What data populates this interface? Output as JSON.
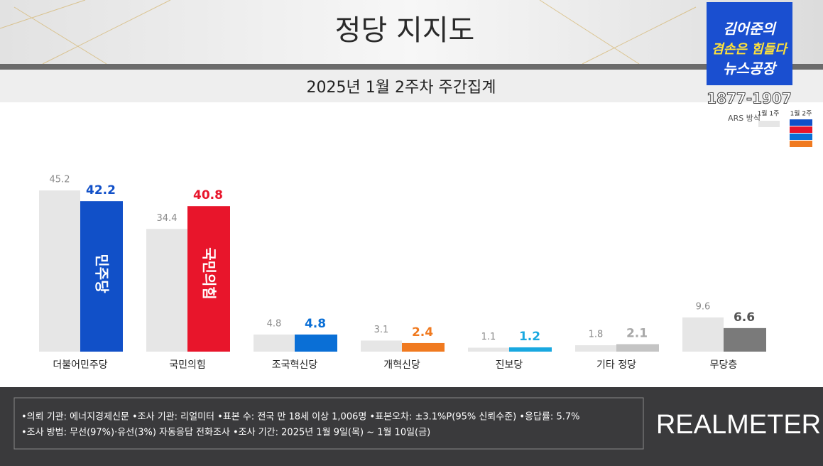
{
  "chart_data": {
    "type": "bar",
    "title": "정당 지지도",
    "subtitle": "2025년 1월 2주차 주간집계",
    "categories": [
      "더불어민주당",
      "국민의힘",
      "조국혁신당",
      "개혁신당",
      "진보당",
      "기타 정당",
      "무당층"
    ],
    "series": [
      {
        "name": "1월 1주",
        "color": "#e6e6e6",
        "label_color": "#8a8a8a",
        "values": [
          45.2,
          34.4,
          4.8,
          3.1,
          1.1,
          1.8,
          9.6
        ]
      },
      {
        "name": "1월 2주",
        "colors": [
          "#1150c8",
          "#e8152b",
          "#0a6fd6",
          "#f07a20",
          "#19a8e0",
          "#c4c4c4",
          "#7a7a7a"
        ],
        "label_colors": [
          "#1150c8",
          "#e8152b",
          "#0a6fd6",
          "#f07a20",
          "#19a8e0",
          "#a8a8a8",
          "#555555"
        ],
        "values": [
          42.2,
          40.8,
          4.8,
          2.4,
          1.2,
          2.1,
          6.6
        ]
      }
    ],
    "bar_logos": [
      "민주당",
      "국민의힘",
      null,
      null,
      null,
      null,
      null
    ]
  },
  "header": {
    "show_name": "김어준의",
    "show_slogan": "겸손은 힘들다",
    "show_title": "뉴스공장",
    "phone": "1877-1907",
    "method": "ARS 방식"
  },
  "footer": {
    "notes": [
      "•의뢰 기관: 에너지경제신문  •조사 기관: 리얼미터 •표본 수: 전국 만 18세 이상 1,006명 •표본오차: ±3.1%P(95% 신뢰수준) •응답률: 5.7%",
      "•조사 방법: 무선(97%)·유선(3%) 자동응답 전화조사 •조사 기간: 2025년 1월 9일(목) ~ 1월 10일(금)"
    ],
    "brand": "REALMETER"
  }
}
